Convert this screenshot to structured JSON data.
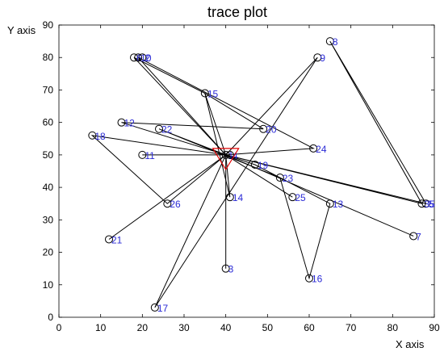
{
  "chart_data": {
    "type": "scatter",
    "title": "trace plot",
    "xlabel": "X axis",
    "ylabel": "Y axis",
    "xlim": [
      0,
      90
    ],
    "ylim": [
      0,
      90
    ],
    "xticks": [
      0,
      10,
      20,
      30,
      40,
      50,
      60,
      70,
      80,
      90
    ],
    "yticks": [
      0,
      10,
      20,
      30,
      40,
      50,
      60,
      70,
      80,
      90
    ],
    "grid": false,
    "depot": {
      "x": 40,
      "y": 50,
      "marker": "triangle-down",
      "color": "#e00000"
    },
    "points": [
      {
        "label": "1",
        "x": 40,
        "y": 50
      },
      {
        "label": "2",
        "x": 20,
        "y": 80
      },
      {
        "label": "3",
        "x": 40,
        "y": 15
      },
      {
        "label": "4",
        "x": 41,
        "y": 50
      },
      {
        "label": "5",
        "x": 88,
        "y": 35
      },
      {
        "label": "6",
        "x": 18,
        "y": 80
      },
      {
        "label": "7",
        "x": 85,
        "y": 25
      },
      {
        "label": "8",
        "x": 65,
        "y": 85
      },
      {
        "label": "9",
        "x": 62,
        "y": 80
      },
      {
        "label": "10",
        "x": 19,
        "y": 80
      },
      {
        "label": "11",
        "x": 20,
        "y": 50
      },
      {
        "label": "12",
        "x": 15,
        "y": 60
      },
      {
        "label": "13",
        "x": 65,
        "y": 35
      },
      {
        "label": "14",
        "x": 41,
        "y": 37
      },
      {
        "label": "15",
        "x": 35,
        "y": 69
      },
      {
        "label": "16",
        "x": 60,
        "y": 12
      },
      {
        "label": "17",
        "x": 23,
        "y": 3
      },
      {
        "label": "18",
        "x": 8,
        "y": 56
      },
      {
        "label": "19",
        "x": 47,
        "y": 47
      },
      {
        "label": "20",
        "x": 49,
        "y": 58
      },
      {
        "label": "21",
        "x": 12,
        "y": 24
      },
      {
        "label": "22",
        "x": 24,
        "y": 58
      },
      {
        "label": "23",
        "x": 53,
        "y": 43
      },
      {
        "label": "24",
        "x": 61,
        "y": 52
      },
      {
        "label": "25",
        "x": 56,
        "y": 37
      },
      {
        "label": "26",
        "x": 26,
        "y": 35
      },
      {
        "label": "35",
        "x": 87,
        "y": 35
      }
    ],
    "routes": [
      [
        [
          40,
          50
        ],
        [
          20,
          50
        ],
        [
          40,
          50
        ]
      ],
      [
        [
          40,
          50
        ],
        [
          15,
          60
        ],
        [
          49,
          58
        ],
        [
          35,
          69
        ],
        [
          40,
          50
        ]
      ],
      [
        [
          40,
          50
        ],
        [
          19,
          80
        ],
        [
          61,
          52
        ],
        [
          40,
          50
        ]
      ],
      [
        [
          40,
          50
        ],
        [
          18,
          80
        ],
        [
          35,
          69
        ],
        [
          41,
          37
        ],
        [
          40,
          50
        ]
      ],
      [
        [
          40,
          50
        ],
        [
          24,
          58
        ],
        [
          53,
          43
        ],
        [
          60,
          12
        ],
        [
          65,
          35
        ],
        [
          47,
          47
        ],
        [
          40,
          50
        ]
      ],
      [
        [
          40,
          50
        ],
        [
          8,
          56
        ],
        [
          26,
          35
        ],
        [
          40,
          50
        ]
      ],
      [
        [
          40,
          50
        ],
        [
          12,
          24
        ],
        [
          40,
          50
        ]
      ],
      [
        [
          40,
          50
        ],
        [
          23,
          3
        ],
        [
          62,
          80
        ],
        [
          40,
          50
        ]
      ],
      [
        [
          40,
          50
        ],
        [
          40,
          15
        ],
        [
          40,
          50
        ]
      ],
      [
        [
          40,
          50
        ],
        [
          88,
          35
        ],
        [
          65,
          85
        ],
        [
          87,
          35
        ],
        [
          40,
          50
        ]
      ],
      [
        [
          40,
          50
        ],
        [
          85,
          25
        ],
        [
          40,
          50
        ]
      ],
      [
        [
          40,
          50
        ],
        [
          56,
          37
        ],
        [
          40,
          50
        ]
      ]
    ]
  }
}
